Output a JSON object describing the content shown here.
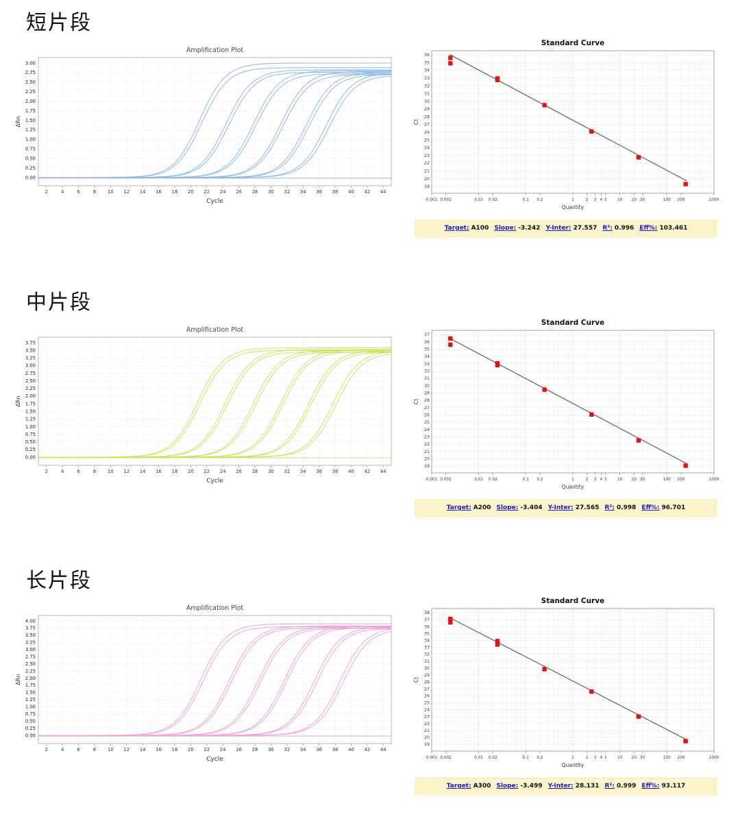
{
  "sections": [
    {
      "label": "短片段",
      "stats": {
        "target_label": "Target:",
        "target": "A100",
        "slope_label": "Slope:",
        "slope": "-3.242",
        "yinter_label": "Y-Inter:",
        "yinter": "27.557",
        "r2_label": "R²:",
        "r2": "0.996",
        "eff_label": "Eff%:",
        "eff": "103.461"
      }
    },
    {
      "label": "中片段",
      "stats": {
        "target_label": "Target:",
        "target": "A200",
        "slope_label": "Slope:",
        "slope": "-3.404",
        "yinter_label": "Y-Inter:",
        "yinter": "27.565",
        "r2_label": "R²:",
        "r2": "0.998",
        "eff_label": "Eff%:",
        "eff": "96.701"
      }
    },
    {
      "label": "长片段",
      "stats": {
        "target_label": "Target:",
        "target": "A300",
        "slope_label": "Slope:",
        "slope": "-3.499",
        "yinter_label": "Y-Inter:",
        "yinter": "28.131",
        "r2_label": "R²:",
        "r2": "0.999",
        "eff_label": "Eff%:",
        "eff": "93.117"
      }
    }
  ],
  "chart_data": [
    {
      "type": "line",
      "role": "amplification",
      "section": 0,
      "title": "Amplification Plot",
      "xlabel": "Cycle",
      "ylabel": "ΔRn",
      "color": "#8ab7e8",
      "grid": true,
      "xlim": [
        1,
        45
      ],
      "xticks": [
        2,
        4,
        6,
        8,
        10,
        12,
        14,
        16,
        18,
        20,
        22,
        24,
        26,
        28,
        30,
        32,
        34,
        36,
        38,
        40,
        42,
        44
      ],
      "ymax": 3.0,
      "ytick_step": 0.25,
      "curves": [
        {
          "ct": 19.3,
          "plateau": 3.0
        },
        {
          "ct": 19.6,
          "plateau": 2.88
        },
        {
          "ct": 22.6,
          "plateau": 2.82
        },
        {
          "ct": 22.95,
          "plateau": 2.76
        },
        {
          "ct": 26.0,
          "plateau": 2.8
        },
        {
          "ct": 26.3,
          "plateau": 2.72
        },
        {
          "ct": 29.4,
          "plateau": 2.78
        },
        {
          "ct": 29.7,
          "plateau": 2.7
        },
        {
          "ct": 32.6,
          "plateau": 2.76
        },
        {
          "ct": 32.95,
          "plateau": 2.7
        },
        {
          "ct": 35.1,
          "plateau": 2.74
        },
        {
          "ct": 35.5,
          "plateau": 2.68
        }
      ],
      "ntc_baseline": true
    },
    {
      "type": "scatter",
      "role": "standard_curve",
      "section": 0,
      "title": "Standard Curve",
      "xlabel": "Quantity",
      "ylabel": "Ct",
      "xscale": "log",
      "xlim": [
        0.001,
        1000
      ],
      "xtick_labels": [
        "0.001",
        "0.002",
        "0.01",
        "0.02",
        "0.1",
        "0.2",
        "1",
        "2",
        "3",
        "4",
        "5",
        "10",
        "20",
        "30",
        "100",
        "200",
        "1000"
      ],
      "ylim": [
        19,
        36
      ],
      "points": [
        {
          "q": 0.0025,
          "ct": 35.6
        },
        {
          "q": 0.0025,
          "ct": 34.9
        },
        {
          "q": 0.025,
          "ct": 32.95
        },
        {
          "q": 0.025,
          "ct": 32.75
        },
        {
          "q": 0.25,
          "ct": 29.5
        },
        {
          "q": 2.5,
          "ct": 26.1
        },
        {
          "q": 25,
          "ct": 22.75
        },
        {
          "q": 250,
          "ct": 19.3
        }
      ],
      "fit": {
        "slope": -3.242,
        "y_inter": 27.557
      },
      "point_color": "#e31212",
      "line_color": "#606060"
    },
    {
      "type": "line",
      "role": "amplification",
      "section": 1,
      "title": "Amplification Plot",
      "xlabel": "Cycle",
      "ylabel": "ΔRn",
      "color": "#c8e45c",
      "grid": true,
      "xlim": [
        1,
        45
      ],
      "xticks": [
        2,
        4,
        6,
        8,
        10,
        12,
        14,
        16,
        18,
        20,
        22,
        24,
        26,
        28,
        30,
        32,
        34,
        36,
        38,
        40,
        42,
        44
      ],
      "ymax": 3.75,
      "ytick_step": 0.25,
      "curves": [
        {
          "ct": 19.05,
          "plateau": 3.58
        },
        {
          "ct": 19.35,
          "plateau": 3.5
        },
        {
          "ct": 22.5,
          "plateau": 3.52
        },
        {
          "ct": 22.8,
          "plateau": 3.45
        },
        {
          "ct": 26.0,
          "plateau": 3.5
        },
        {
          "ct": 26.3,
          "plateau": 3.44
        },
        {
          "ct": 29.4,
          "plateau": 3.52
        },
        {
          "ct": 29.7,
          "plateau": 3.46
        },
        {
          "ct": 32.9,
          "plateau": 3.5
        },
        {
          "ct": 33.2,
          "plateau": 3.44
        },
        {
          "ct": 35.9,
          "plateau": 3.48
        },
        {
          "ct": 36.3,
          "plateau": 3.42
        }
      ],
      "ntc_baseline": true
    },
    {
      "type": "scatter",
      "role": "standard_curve",
      "section": 1,
      "title": "Standard Curve",
      "xlabel": "Quantity",
      "ylabel": "Ct",
      "xscale": "log",
      "xlim": [
        0.001,
        1000
      ],
      "xtick_labels": [
        "0.001",
        "0.002",
        "0.01",
        "0.02",
        "0.1",
        "0.2",
        "1",
        "2",
        "3",
        "4",
        "5",
        "10",
        "20",
        "30",
        "100",
        "200",
        "1000"
      ],
      "ylim": [
        19,
        37
      ],
      "points": [
        {
          "q": 0.0025,
          "ct": 36.45
        },
        {
          "q": 0.0025,
          "ct": 35.6
        },
        {
          "q": 0.025,
          "ct": 33.05
        },
        {
          "q": 0.025,
          "ct": 32.8
        },
        {
          "q": 0.25,
          "ct": 29.45
        },
        {
          "q": 2.5,
          "ct": 26.05
        },
        {
          "q": 25,
          "ct": 22.5
        },
        {
          "q": 250,
          "ct": 19.05
        }
      ],
      "fit": {
        "slope": -3.404,
        "y_inter": 27.565
      },
      "point_color": "#e31212",
      "line_color": "#606060"
    },
    {
      "type": "line",
      "role": "amplification",
      "section": 2,
      "title": "Amplification Plot",
      "xlabel": "Cycle",
      "ylabel": "ΔRn",
      "color": "#f0a0dd",
      "grid": true,
      "xlim": [
        1,
        45
      ],
      "xticks": [
        2,
        4,
        6,
        8,
        10,
        12,
        14,
        16,
        18,
        20,
        22,
        24,
        26,
        28,
        30,
        32,
        34,
        36,
        38,
        40,
        42,
        44
      ],
      "ymax": 4.0,
      "ytick_step": 0.25,
      "curves": [
        {
          "ct": 19.45,
          "plateau": 3.9
        },
        {
          "ct": 19.75,
          "plateau": 3.8
        },
        {
          "ct": 23.0,
          "plateau": 3.82
        },
        {
          "ct": 23.3,
          "plateau": 3.76
        },
        {
          "ct": 26.6,
          "plateau": 3.8
        },
        {
          "ct": 26.9,
          "plateau": 3.74
        },
        {
          "ct": 29.85,
          "plateau": 3.82
        },
        {
          "ct": 30.15,
          "plateau": 3.76
        },
        {
          "ct": 33.6,
          "plateau": 3.8
        },
        {
          "ct": 33.95,
          "plateau": 3.74
        },
        {
          "ct": 36.8,
          "plateau": 3.78
        },
        {
          "ct": 37.2,
          "plateau": 3.72
        }
      ],
      "ntc_baseline": true
    },
    {
      "type": "scatter",
      "role": "standard_curve",
      "section": 2,
      "title": "Standard Curve",
      "xlabel": "Quantity",
      "ylabel": "Ct",
      "xscale": "log",
      "xlim": [
        0.001,
        1000
      ],
      "xtick_labels": [
        "0.001",
        "0.002",
        "0.01",
        "0.02",
        "0.1",
        "0.2",
        "1",
        "2",
        "3",
        "4",
        "5",
        "10",
        "20",
        "30",
        "100",
        "200",
        "1000"
      ],
      "ylim": [
        19,
        38
      ],
      "points": [
        {
          "q": 0.0025,
          "ct": 37.1
        },
        {
          "q": 0.0025,
          "ct": 36.6
        },
        {
          "q": 0.025,
          "ct": 33.9
        },
        {
          "q": 0.025,
          "ct": 33.4
        },
        {
          "q": 0.25,
          "ct": 29.85
        },
        {
          "q": 2.5,
          "ct": 26.6
        },
        {
          "q": 25,
          "ct": 23.0
        },
        {
          "q": 250,
          "ct": 19.45
        }
      ],
      "fit": {
        "slope": -3.499,
        "y_inter": 28.131
      },
      "point_color": "#e31212",
      "line_color": "#606060"
    }
  ],
  "colors": {
    "stats_bar_bg": "#FBF4CA",
    "link_blue": "#1a1acd",
    "point_red": "#e31212",
    "short_blue": "#8ab7e8",
    "mid_green": "#c8e45c",
    "long_pink": "#f0a0dd"
  }
}
